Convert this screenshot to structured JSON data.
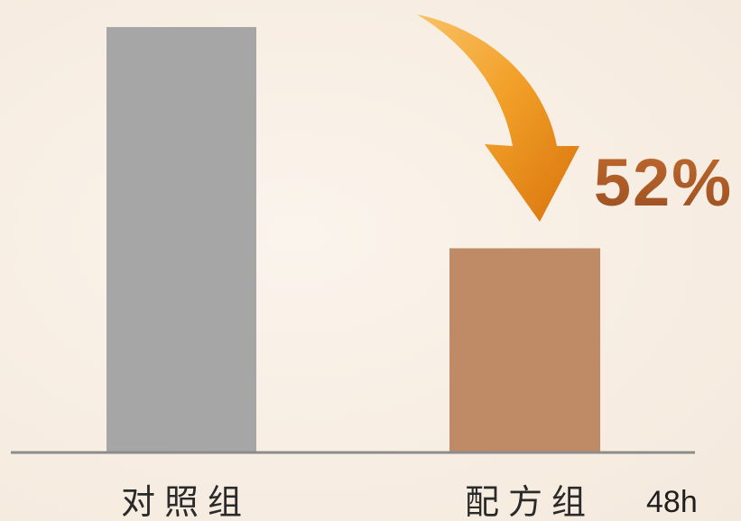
{
  "chart_data": {
    "type": "bar",
    "categories": [
      "对照组",
      "配方组"
    ],
    "values": [
      100,
      48
    ],
    "colors": [
      "#a6a6a6",
      "#bf8a66"
    ],
    "ylim": [
      0,
      100
    ],
    "grid": false,
    "axis_color": "#8c8c8c",
    "annotation": {
      "text": "52%",
      "color": "#a8592a",
      "arrow_color": "#f2a12a"
    },
    "time_label": "48h"
  }
}
